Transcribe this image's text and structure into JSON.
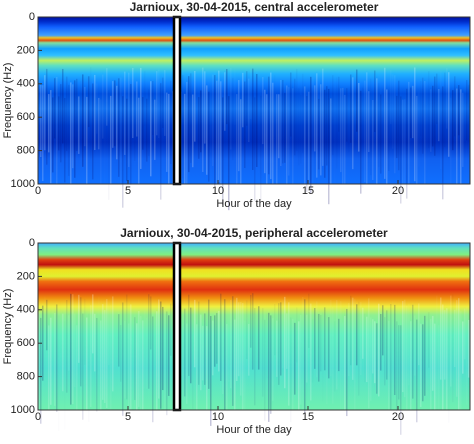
{
  "chart_data": [
    {
      "type": "spectrogram",
      "title": "Jarnioux, 30-04-2015, central accelerometer",
      "xlabel": "Hour of the day",
      "ylabel": "Frequency (Hz)",
      "xlim": [
        0,
        24
      ],
      "xticks": [
        0,
        5,
        10,
        15,
        20
      ],
      "ylim": [
        0,
        1000
      ],
      "yticks": [
        0,
        200,
        400,
        600,
        800,
        1000
      ],
      "y_reversed": true
    },
    {
      "type": "spectrogram",
      "title": "Jarnioux, 30-04-2015, peripheral accelerometer",
      "xlabel": "Hour of the day",
      "ylabel": "Frequency (Hz)",
      "xlim": [
        0,
        24
      ],
      "xticks": [
        0,
        5,
        10,
        15,
        20
      ],
      "ylim": [
        0,
        1000
      ],
      "yticks": [
        0,
        200,
        400,
        600,
        800,
        1000
      ],
      "y_reversed": true
    }
  ]
}
